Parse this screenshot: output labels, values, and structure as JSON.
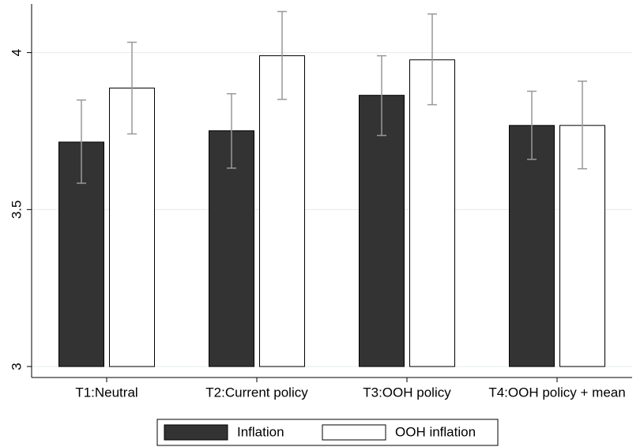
{
  "chart_data": {
    "type": "bar",
    "categories": [
      "T1:Neutral",
      "T2:Current policy",
      "T3:OOH policy",
      "T4:OOH policy + mean"
    ],
    "series": [
      {
        "name": "Inflation",
        "color": "#333333",
        "values": [
          3.715,
          3.751,
          3.864,
          3.768
        ],
        "lower": [
          3.584,
          3.632,
          3.736,
          3.66
        ],
        "upper": [
          3.849,
          3.869,
          3.99,
          3.877
        ]
      },
      {
        "name": "OOH inflation",
        "color": "#ffffff",
        "values": [
          3.887,
          3.99,
          3.977,
          3.768
        ],
        "lower": [
          3.741,
          3.851,
          3.834,
          3.63
        ],
        "upper": [
          4.033,
          4.131,
          4.123,
          3.909
        ]
      }
    ],
    "ylim": [
      2.965,
      4.155
    ],
    "yticks": [
      3,
      3.5,
      4
    ],
    "grid": true,
    "legend": "bottom"
  }
}
